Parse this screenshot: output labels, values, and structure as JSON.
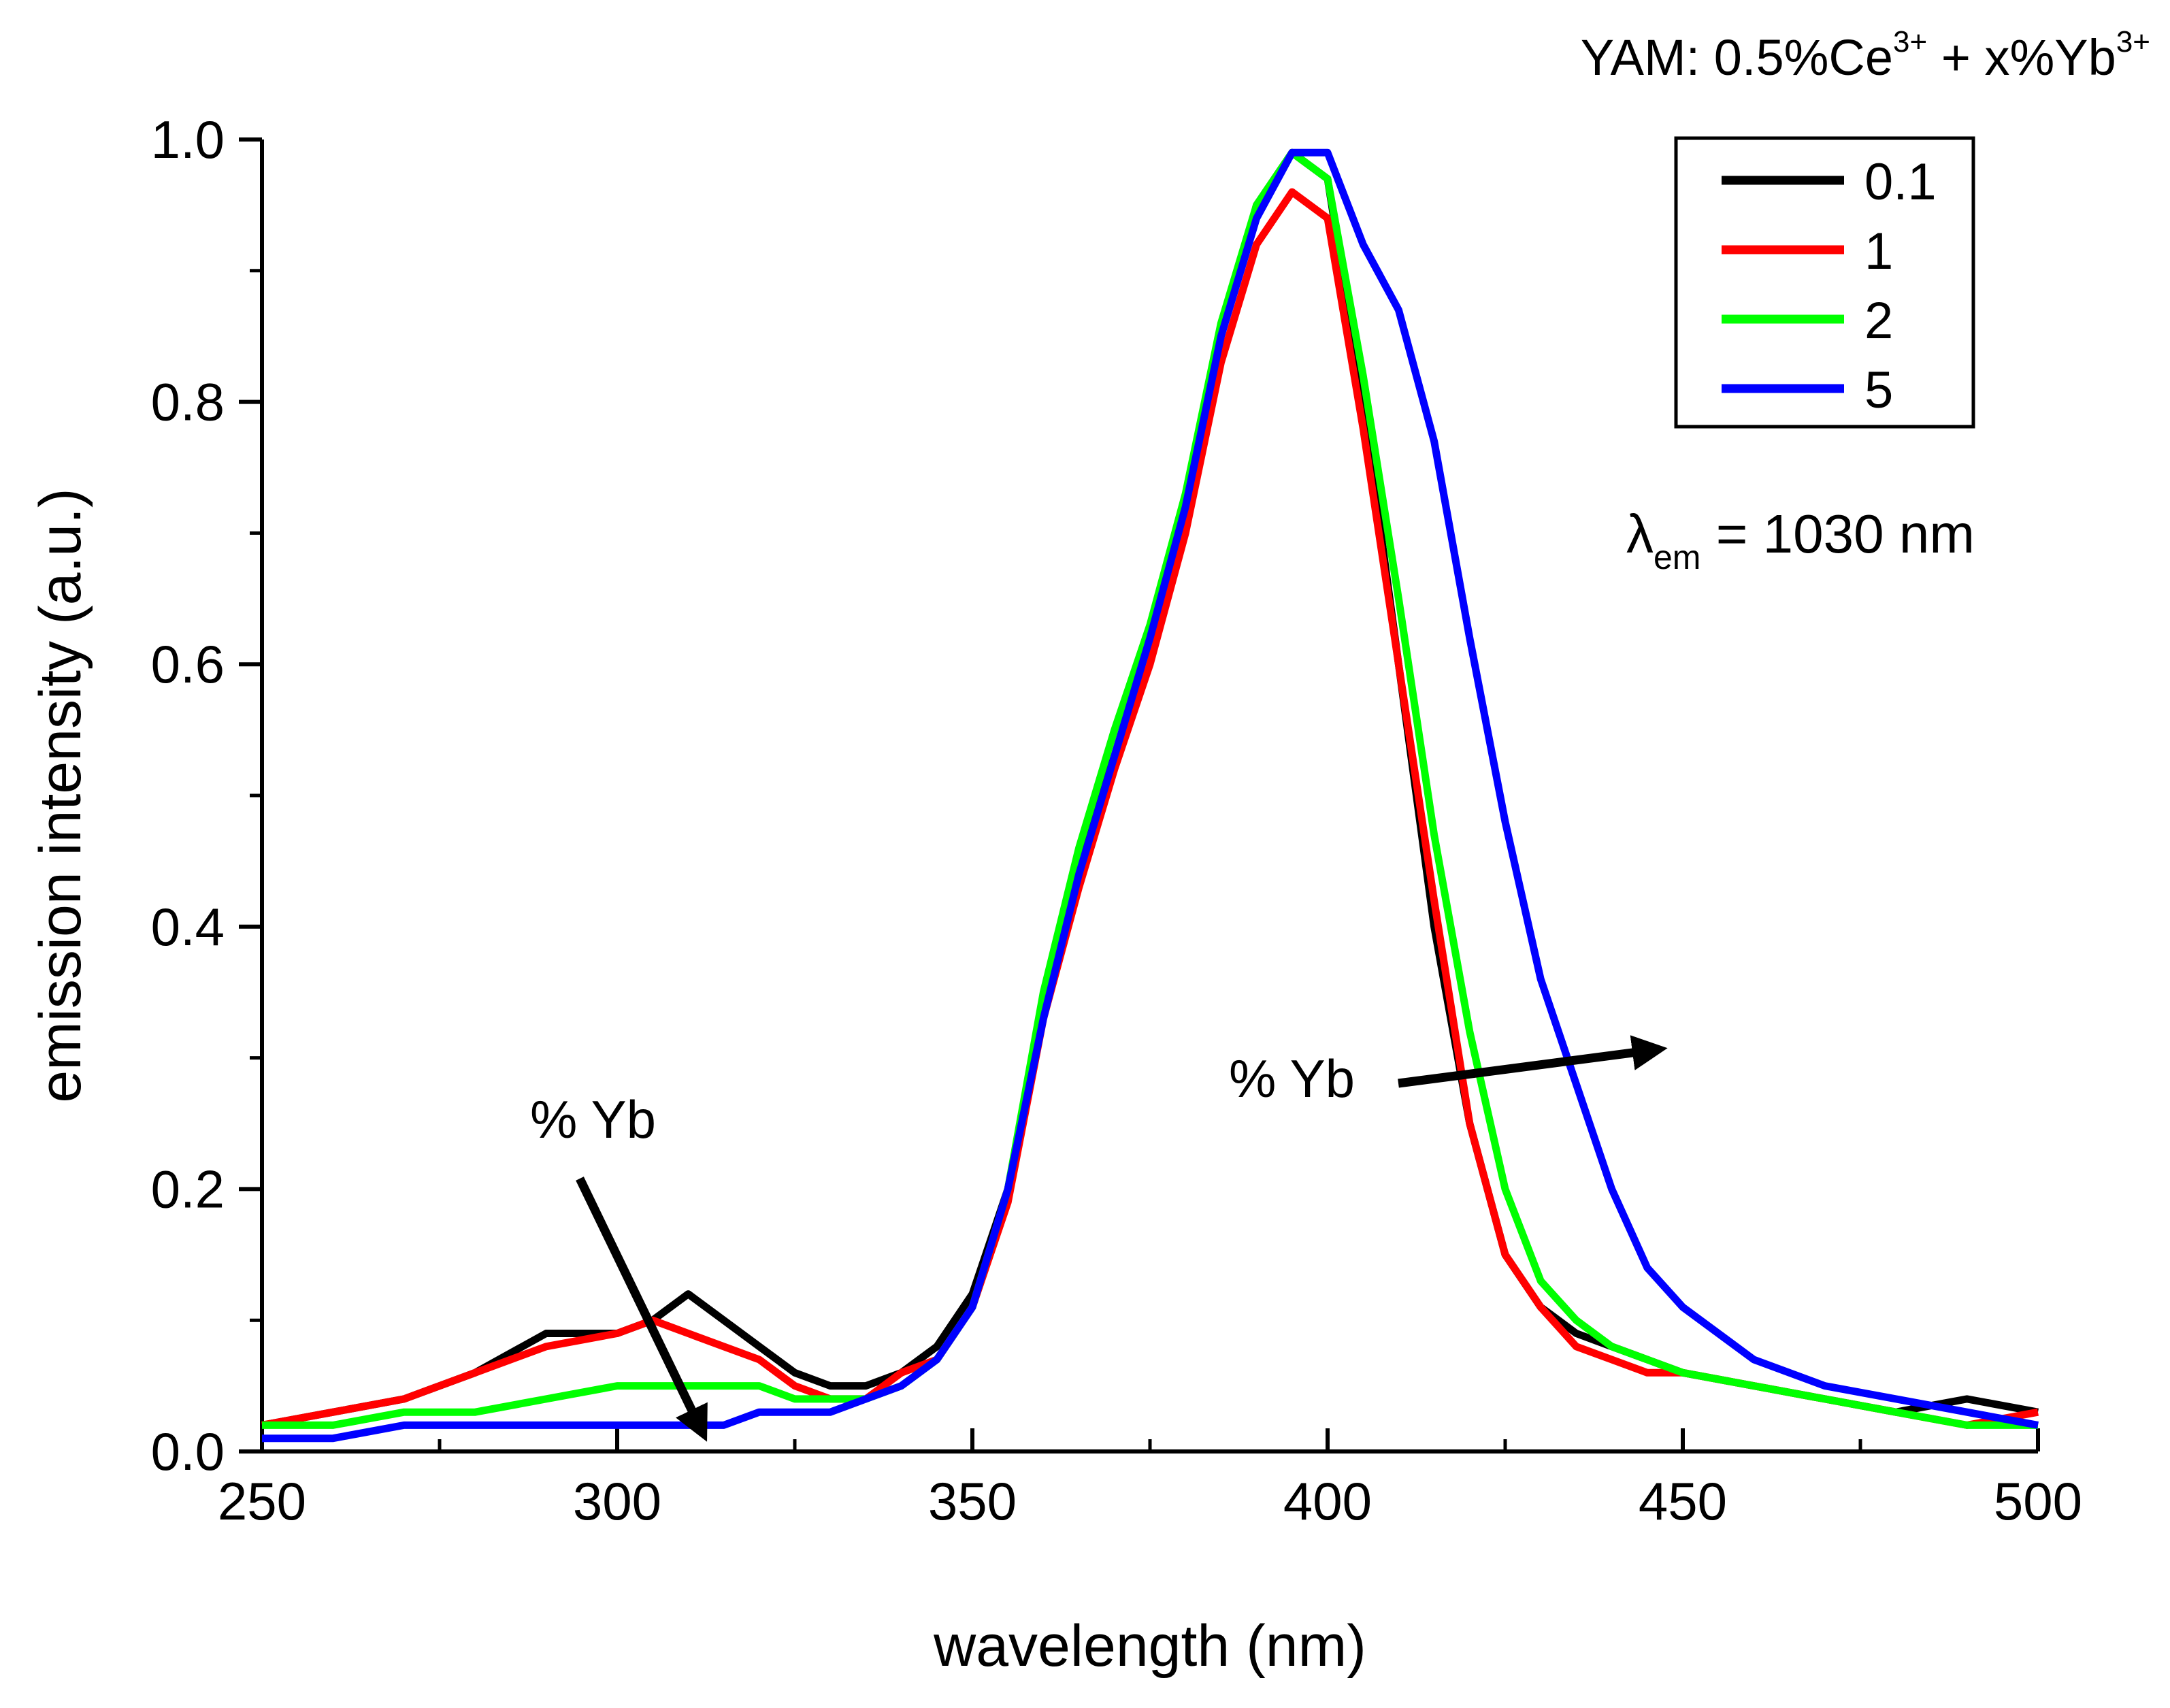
{
  "chart_data": {
    "type": "line",
    "title": {
      "prefix": "YAM: 0.5%Ce",
      "sup1": "3+",
      "middle": " + x%Yb",
      "sup2": "3+"
    },
    "xlabel": "wavelength (nm)",
    "ylabel": "emission intensity (a.u.)",
    "xlim": [
      250,
      500
    ],
    "ylim": [
      0,
      1.0
    ],
    "x_ticks": [
      250,
      300,
      350,
      400,
      450,
      500
    ],
    "x_tick_labels": [
      "250",
      "300",
      "350",
      "400",
      "450",
      "500"
    ],
    "y_ticks": [
      0,
      0.2,
      0.4,
      0.6,
      0.8,
      1.0
    ],
    "y_tick_labels": [
      "0.0",
      "0.2",
      "0.4",
      "0.6",
      "0.8",
      "1.0"
    ],
    "legend_position": "top-right",
    "grid": false,
    "series": [
      {
        "name": "0.1",
        "color": "#000000",
        "x": [
          250,
          260,
          270,
          280,
          290,
          300,
          305,
          310,
          315,
          320,
          325,
          330,
          335,
          340,
          345,
          350,
          355,
          360,
          365,
          370,
          375,
          380,
          385,
          390,
          395,
          400,
          405,
          410,
          415,
          420,
          425,
          430,
          435,
          440,
          445,
          450,
          460,
          470,
          480,
          490,
          500
        ],
        "y": [
          0.02,
          0.03,
          0.04,
          0.06,
          0.09,
          0.09,
          0.1,
          0.12,
          0.1,
          0.08,
          0.06,
          0.05,
          0.05,
          0.06,
          0.08,
          0.12,
          0.2,
          0.34,
          0.45,
          0.53,
          0.62,
          0.72,
          0.85,
          0.95,
          0.99,
          0.97,
          0.8,
          0.6,
          0.4,
          0.25,
          0.15,
          0.11,
          0.09,
          0.08,
          0.07,
          0.06,
          0.05,
          0.04,
          0.03,
          0.04,
          0.03
        ]
      },
      {
        "name": "1",
        "color": "#ff0000",
        "x": [
          250,
          260,
          270,
          280,
          290,
          300,
          305,
          310,
          315,
          320,
          325,
          330,
          335,
          340,
          345,
          350,
          355,
          360,
          365,
          370,
          375,
          380,
          385,
          390,
          395,
          400,
          405,
          410,
          415,
          420,
          425,
          430,
          435,
          440,
          445,
          450,
          460,
          470,
          480,
          490,
          500
        ],
        "y": [
          0.02,
          0.03,
          0.04,
          0.06,
          0.08,
          0.09,
          0.1,
          0.09,
          0.08,
          0.07,
          0.05,
          0.04,
          0.04,
          0.06,
          0.07,
          0.11,
          0.19,
          0.33,
          0.43,
          0.52,
          0.6,
          0.7,
          0.83,
          0.92,
          0.96,
          0.94,
          0.78,
          0.6,
          0.42,
          0.25,
          0.15,
          0.11,
          0.08,
          0.07,
          0.06,
          0.06,
          0.05,
          0.04,
          0.03,
          0.02,
          0.03
        ]
      },
      {
        "name": "2",
        "color": "#00ff00",
        "x": [
          250,
          260,
          270,
          280,
          290,
          300,
          305,
          310,
          315,
          320,
          325,
          330,
          335,
          340,
          345,
          350,
          355,
          360,
          365,
          370,
          375,
          380,
          385,
          390,
          395,
          400,
          405,
          410,
          415,
          420,
          425,
          430,
          435,
          440,
          445,
          450,
          460,
          470,
          480,
          490,
          500
        ],
        "y": [
          0.02,
          0.02,
          0.03,
          0.03,
          0.04,
          0.05,
          0.05,
          0.05,
          0.05,
          0.05,
          0.04,
          0.04,
          0.04,
          0.05,
          0.07,
          0.11,
          0.2,
          0.35,
          0.46,
          0.55,
          0.63,
          0.73,
          0.86,
          0.95,
          0.99,
          0.97,
          0.82,
          0.65,
          0.47,
          0.32,
          0.2,
          0.13,
          0.1,
          0.08,
          0.07,
          0.06,
          0.05,
          0.04,
          0.03,
          0.02,
          0.02
        ]
      },
      {
        "name": "5",
        "color": "#0000ff",
        "x": [
          250,
          260,
          270,
          280,
          290,
          300,
          305,
          310,
          315,
          320,
          325,
          330,
          335,
          340,
          345,
          350,
          355,
          360,
          365,
          370,
          375,
          380,
          385,
          390,
          395,
          400,
          405,
          410,
          415,
          420,
          425,
          430,
          435,
          440,
          445,
          450,
          460,
          470,
          480,
          490,
          500
        ],
        "y": [
          0.01,
          0.01,
          0.02,
          0.02,
          0.02,
          0.02,
          0.02,
          0.02,
          0.02,
          0.03,
          0.03,
          0.03,
          0.04,
          0.05,
          0.07,
          0.11,
          0.2,
          0.33,
          0.44,
          0.53,
          0.62,
          0.72,
          0.85,
          0.94,
          0.99,
          0.99,
          0.92,
          0.87,
          0.77,
          0.62,
          0.48,
          0.36,
          0.28,
          0.2,
          0.14,
          0.11,
          0.07,
          0.05,
          0.04,
          0.03,
          0.02
        ]
      }
    ],
    "annotations": {
      "lambda_prefix": "λ",
      "lambda_sub": "em",
      "lambda_value": " = 1030 nm",
      "arrow_left_label": "% Yb",
      "arrow_right_label": "% Yb"
    }
  }
}
